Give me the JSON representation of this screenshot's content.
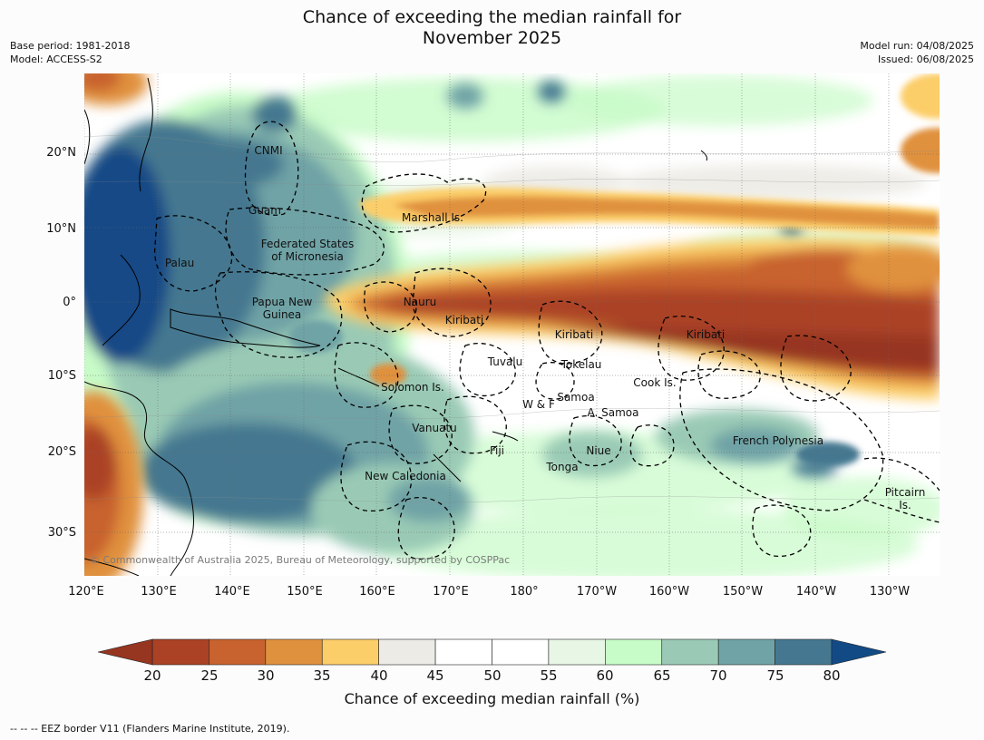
{
  "title": "Chance of exceeding the median rainfall for\nNovember 2025",
  "meta_left": {
    "base_period": "Base period: 1981-2018",
    "model": "Model: ACCESS-S2"
  },
  "meta_right": {
    "model_run": "Model run: 04/08/2025",
    "issued": "Issued: 06/08/2025"
  },
  "copyright": "© Commonwealth of Australia 2025, Bureau of Meteorology, supported by COSPPac",
  "footer": "--  --  -- EEZ border V11 (Flanders Marine Institute, 2019).",
  "lon_labels": [
    "120°E",
    "130°E",
    "140°E",
    "150°E",
    "160°E",
    "170°E",
    "180°",
    "170°W",
    "160°W",
    "150°W",
    "140°W",
    "130°W"
  ],
  "lat_labels": [
    "20°N",
    "10°N",
    "0°",
    "10°S",
    "20°S",
    "30°S"
  ],
  "regions": [
    {
      "id": "cnmi",
      "label": "CNMI"
    },
    {
      "id": "guam",
      "label": "Guam"
    },
    {
      "id": "fsm",
      "label": "Federated States\nof Micronesia"
    },
    {
      "id": "palau",
      "label": "Palau"
    },
    {
      "id": "marshall",
      "label": "Marshall Is."
    },
    {
      "id": "png",
      "label": "Papua New\nGuinea"
    },
    {
      "id": "nauru",
      "label": "Nauru"
    },
    {
      "id": "kiribati_w",
      "label": "Kiribati"
    },
    {
      "id": "kiribati_c",
      "label": "Kiribati"
    },
    {
      "id": "kiribati_e",
      "label": "Kiribati"
    },
    {
      "id": "tuvalu",
      "label": "Tuvalu"
    },
    {
      "id": "tokelau",
      "label": "Tokelau"
    },
    {
      "id": "cook",
      "label": "Cook Is."
    },
    {
      "id": "solomon",
      "label": "Solomon Is."
    },
    {
      "id": "wf",
      "label": "W & F"
    },
    {
      "id": "samoa",
      "label": "Samoa"
    },
    {
      "id": "asamoa",
      "label": "A. Samoa"
    },
    {
      "id": "vanuatu",
      "label": "Vanuatu"
    },
    {
      "id": "fiji",
      "label": "Fiji"
    },
    {
      "id": "niue",
      "label": "Niue"
    },
    {
      "id": "tonga",
      "label": "Tonga"
    },
    {
      "id": "frpoly",
      "label": "French Polynesia"
    },
    {
      "id": "newcal",
      "label": "New Caledonia"
    },
    {
      "id": "pitcairn",
      "label": "Pitcairn\nIs."
    }
  ],
  "colorbar": {
    "label": "Chance of exceeding median rainfall (%)",
    "ticks": [
      "20",
      "25",
      "30",
      "35",
      "40",
      "45",
      "50",
      "55",
      "60",
      "65",
      "70",
      "75",
      "80"
    ],
    "colors": [
      "#ab4225",
      "#c8622f",
      "#e0913e",
      "#fcce69",
      "#ecebe6",
      "#ffffff",
      "#ffffff",
      "#e8f6e6",
      "#c7fbc7",
      "#9acab5",
      "#70a3a6",
      "#457890"
    ],
    "under_color": "#963520",
    "over_color": "#124a86"
  }
}
